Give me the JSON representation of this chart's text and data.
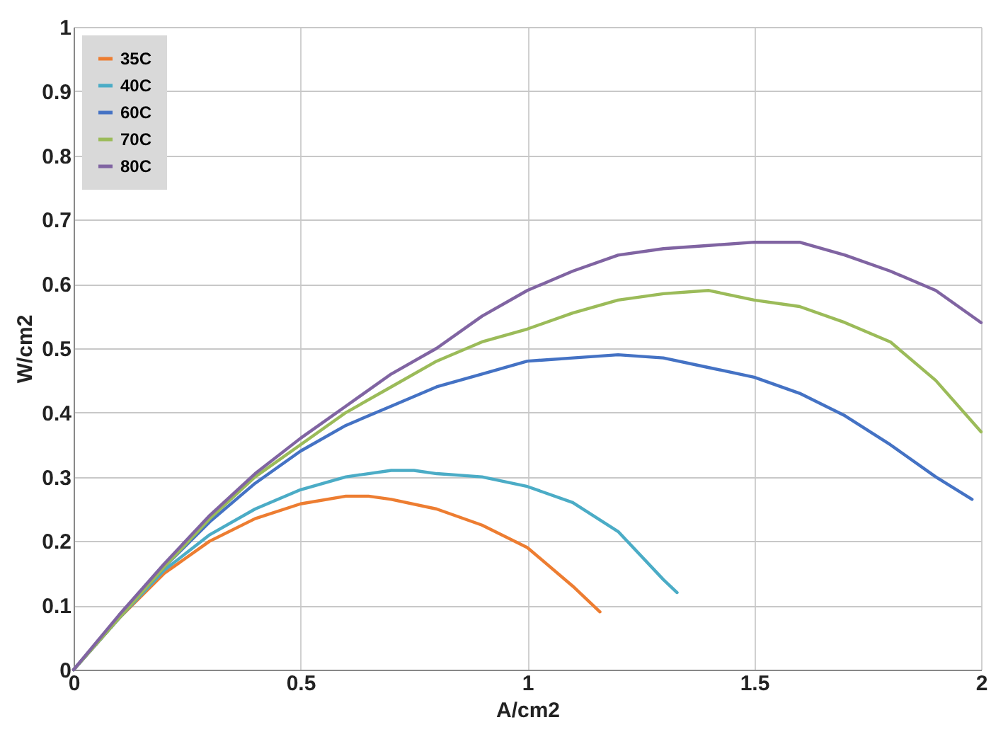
{
  "chart_data": {
    "type": "line",
    "xlabel": "A/cm2",
    "ylabel": "W/cm2",
    "xlim": [
      0,
      2
    ],
    "xticks": [
      0,
      0.5,
      1,
      1.5,
      2
    ],
    "ylim": [
      0,
      1
    ],
    "yticks": [
      0,
      0.1,
      0.2,
      0.3,
      0.4,
      0.5,
      0.6,
      0.7,
      0.8,
      0.9,
      1
    ],
    "grid": true,
    "legend": "top left",
    "marker": "none",
    "line_style": "solid",
    "series": [
      {
        "name": "35C",
        "color": "#ed7d31",
        "x": [
          0,
          0.1,
          0.2,
          0.3,
          0.4,
          0.5,
          0.6,
          0.65,
          0.7,
          0.8,
          0.9,
          1.0,
          1.1,
          1.16
        ],
        "values": [
          0,
          0.08,
          0.15,
          0.2,
          0.235,
          0.258,
          0.27,
          0.27,
          0.265,
          0.25,
          0.225,
          0.19,
          0.13,
          0.09
        ]
      },
      {
        "name": "40C",
        "color": "#4bacc6",
        "x": [
          0,
          0.1,
          0.2,
          0.3,
          0.4,
          0.5,
          0.6,
          0.7,
          0.75,
          0.8,
          0.9,
          1.0,
          1.1,
          1.2,
          1.3,
          1.33
        ],
        "values": [
          0,
          0.08,
          0.155,
          0.21,
          0.25,
          0.28,
          0.3,
          0.31,
          0.31,
          0.305,
          0.3,
          0.285,
          0.26,
          0.215,
          0.14,
          0.12
        ]
      },
      {
        "name": "60C",
        "color": "#4472c4",
        "x": [
          0,
          0.1,
          0.2,
          0.3,
          0.4,
          0.5,
          0.6,
          0.7,
          0.8,
          0.9,
          1.0,
          1.1,
          1.2,
          1.3,
          1.4,
          1.5,
          1.6,
          1.7,
          1.8,
          1.9,
          1.98
        ],
        "values": [
          0,
          0.08,
          0.16,
          0.23,
          0.29,
          0.34,
          0.38,
          0.41,
          0.44,
          0.46,
          0.48,
          0.485,
          0.49,
          0.485,
          0.47,
          0.455,
          0.43,
          0.395,
          0.35,
          0.3,
          0.265
        ]
      },
      {
        "name": "70C",
        "color": "#9bbb59",
        "x": [
          0,
          0.1,
          0.2,
          0.3,
          0.4,
          0.5,
          0.6,
          0.7,
          0.8,
          0.9,
          1.0,
          1.1,
          1.2,
          1.3,
          1.4,
          1.5,
          1.6,
          1.7,
          1.8,
          1.9,
          2.0
        ],
        "values": [
          0,
          0.08,
          0.16,
          0.235,
          0.3,
          0.35,
          0.4,
          0.44,
          0.48,
          0.51,
          0.53,
          0.555,
          0.575,
          0.585,
          0.59,
          0.575,
          0.565,
          0.54,
          0.51,
          0.45,
          0.37
        ]
      },
      {
        "name": "80C",
        "color": "#8064a2",
        "x": [
          0,
          0.1,
          0.2,
          0.3,
          0.4,
          0.5,
          0.6,
          0.7,
          0.8,
          0.9,
          1.0,
          1.1,
          1.2,
          1.3,
          1.4,
          1.5,
          1.6,
          1.7,
          1.8,
          1.9,
          2.0
        ],
        "values": [
          0,
          0.085,
          0.165,
          0.24,
          0.305,
          0.36,
          0.41,
          0.46,
          0.5,
          0.55,
          0.59,
          0.62,
          0.645,
          0.655,
          0.66,
          0.665,
          0.665,
          0.645,
          0.62,
          0.59,
          0.54
        ]
      }
    ]
  }
}
